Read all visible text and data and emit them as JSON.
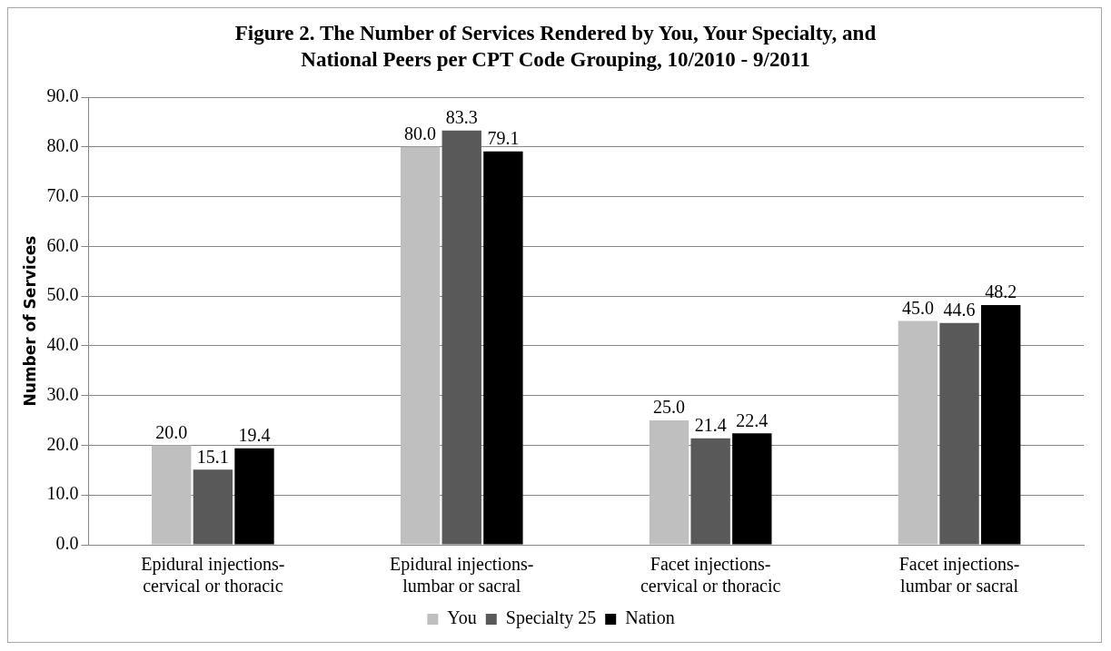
{
  "chart_data": {
    "type": "bar",
    "title": "Figure 2. The Number of Services Rendered by You, Your Specialty, and National Peers per CPT Code Grouping, 10/2010 - 9/2011",
    "ylabel": "Number of Services",
    "categories": [
      "Epidural injections-cervical or thoracic",
      "Epidural injections-lumbar or sacral",
      "Facet injections-cervical or thoracic",
      "Facet injections-lumbar or sacral"
    ],
    "series": [
      {
        "name": "You",
        "color": "#bfbfbf",
        "values": [
          20.0,
          80.0,
          25.0,
          45.0
        ],
        "value_labels": [
          "20.0",
          "80.0",
          "25.0",
          "45.0"
        ]
      },
      {
        "name": "Specialty 25",
        "color": "#595959",
        "values": [
          15.1,
          83.3,
          21.4,
          44.6
        ],
        "value_labels": [
          "15.1",
          "83.3",
          "21.4",
          "44.6"
        ]
      },
      {
        "name": "Nation",
        "color": "#000000",
        "values": [
          19.4,
          79.1,
          22.4,
          48.2
        ],
        "value_labels": [
          "19.4",
          "79.1",
          "22.4",
          "48.2"
        ]
      }
    ],
    "ylim": [
      0,
      90
    ],
    "yticks": [
      {
        "value": 0,
        "label": "0.0"
      },
      {
        "value": 10,
        "label": "10.0"
      },
      {
        "value": 20,
        "label": "20.0"
      },
      {
        "value": 30,
        "label": "30.0"
      },
      {
        "value": 40,
        "label": "40.0"
      },
      {
        "value": 50,
        "label": "50.0"
      },
      {
        "value": 60,
        "label": "60.0"
      },
      {
        "value": 70,
        "label": "70.0"
      },
      {
        "value": 80,
        "label": "80.0"
      },
      {
        "value": 90,
        "label": "90.0"
      }
    ],
    "grid": "y",
    "legend": "bottom"
  }
}
